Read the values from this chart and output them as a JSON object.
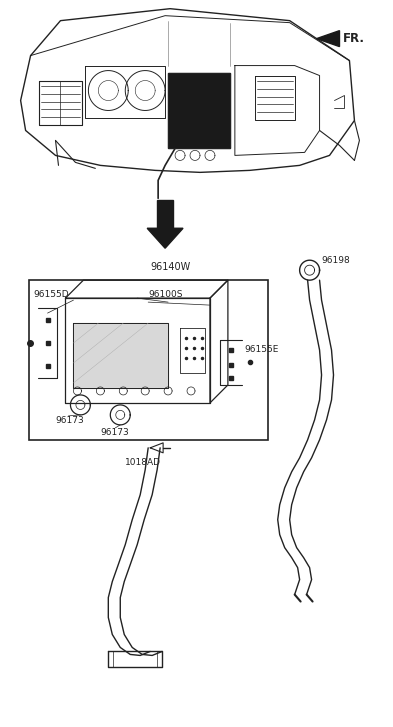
{
  "bg_color": "#ffffff",
  "line_color": "#222222",
  "fig_width": 3.93,
  "fig_height": 7.27,
  "dpi": 100,
  "fr_label": "FR.",
  "label_96140W": "96140W",
  "label_96198": "96198",
  "label_96155D": "96155D",
  "label_96100S": "96100S",
  "label_96155E": "96155E",
  "label_96173a": "96173",
  "label_96173b": "96173",
  "label_1018AD": "1018AD"
}
